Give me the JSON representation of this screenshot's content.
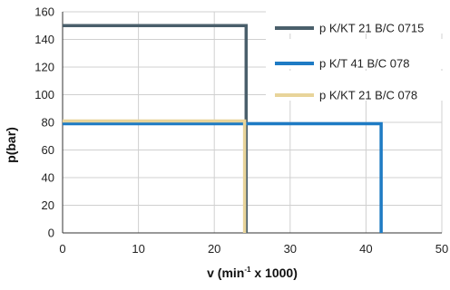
{
  "chart_data": {
    "type": "line",
    "xlabel_main": "v (min",
    "xlabel_sup": "-1",
    "xlabel_tail": " x 1000)",
    "ylabel": "p(bar)",
    "xlim": [
      0,
      50
    ],
    "ylim": [
      0,
      160
    ],
    "xticks": [
      "0",
      "10",
      "20",
      "30",
      "40",
      "50"
    ],
    "yticks": [
      "0",
      "20",
      "40",
      "60",
      "80",
      "100",
      "120",
      "140",
      "160"
    ],
    "grid": true,
    "legend_position": "top-right",
    "series": [
      {
        "name": "p K/KT 21 B/C 0715",
        "color": "#4a5f6b",
        "points": [
          [
            0,
            150
          ],
          [
            24.2,
            150
          ],
          [
            24.2,
            0
          ]
        ]
      },
      {
        "name": "p K/T 41 B/C 078",
        "color": "#1e7bc4",
        "points": [
          [
            0,
            79
          ],
          [
            42,
            79
          ],
          [
            42,
            0
          ]
        ]
      },
      {
        "name": "p K/KT 21 B/C 078",
        "color": "#e8d49a",
        "points": [
          [
            0,
            81
          ],
          [
            24,
            81
          ],
          [
            24,
            0
          ]
        ]
      }
    ]
  }
}
